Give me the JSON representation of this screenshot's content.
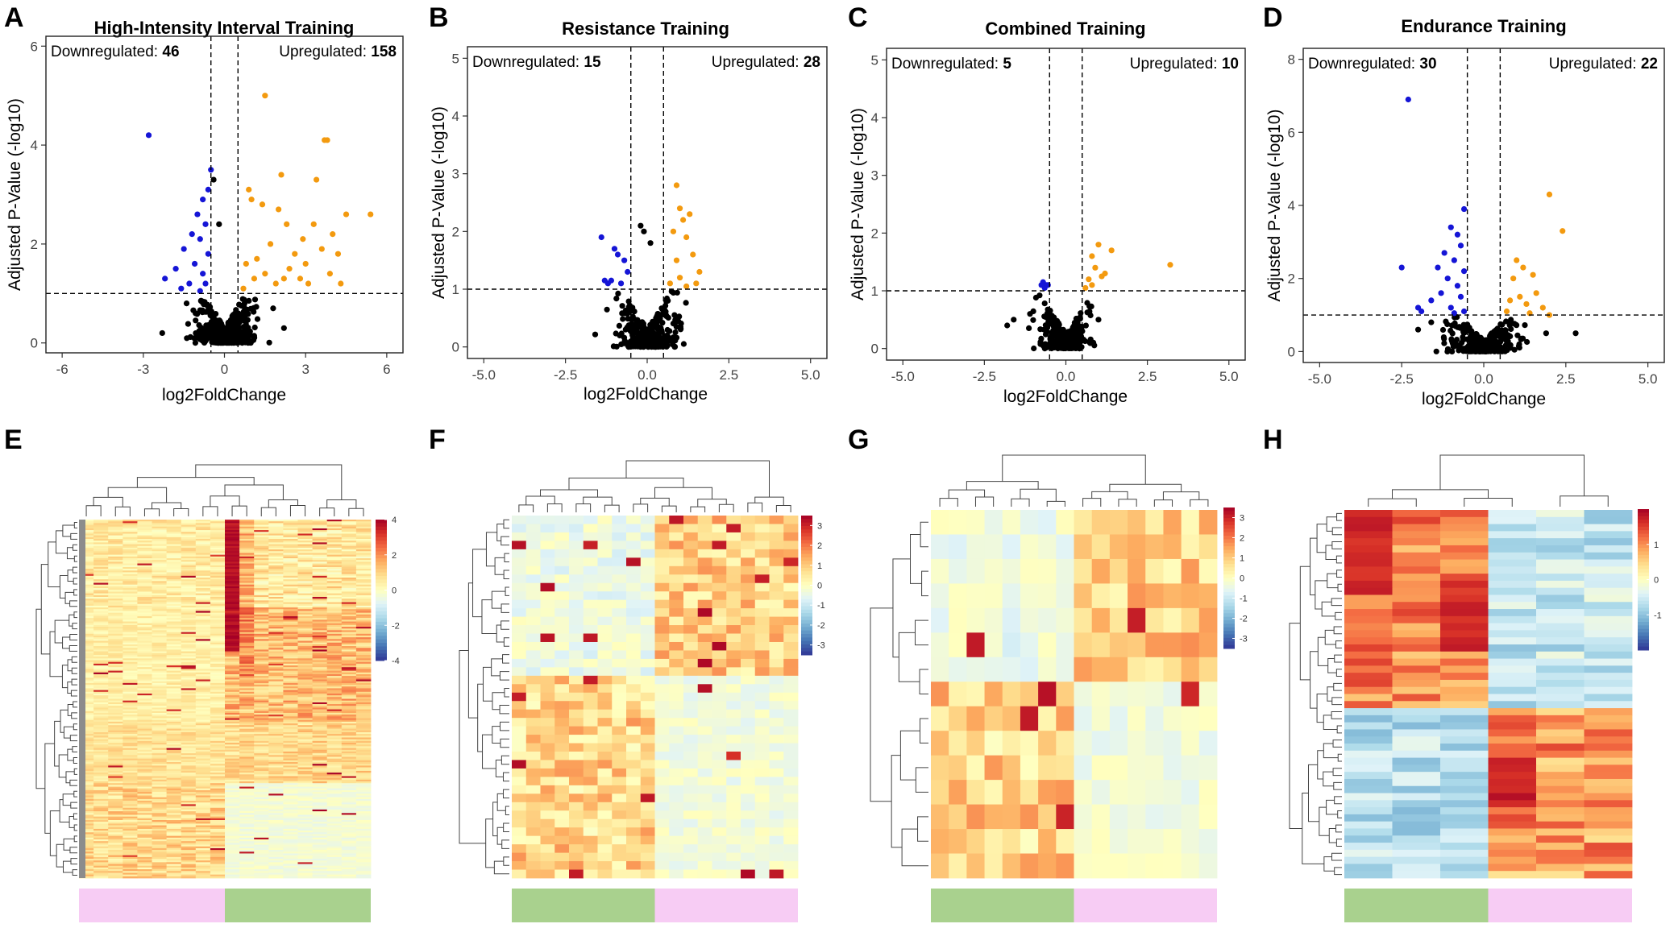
{
  "figure": {
    "panel_letters": [
      "A",
      "B",
      "C",
      "D",
      "E",
      "F",
      "G",
      "H"
    ]
  },
  "colors": {
    "down": "#1515d6",
    "up": "#f39a0f",
    "ns": "#000000",
    "group_green": "#a9d18e",
    "group_pink": "#f7ccf4",
    "colormap": [
      "#313695",
      "#4575b4",
      "#74add1",
      "#abd9e9",
      "#e0f3f8",
      "#ffffbf",
      "#fee090",
      "#fdae61",
      "#f46d43",
      "#d73027",
      "#a50026"
    ]
  },
  "chart_data": [
    {
      "type": "scatter",
      "panel": "A",
      "title": "High-Intensity Interval Training",
      "xlabel": "log2FoldChange",
      "ylabel": "Adjusted P-Value (-log10)",
      "xlim": [
        -6.6,
        6.6
      ],
      "ylim": [
        -0.2,
        6.2
      ],
      "xticks": [
        -6,
        -3,
        0,
        3,
        6
      ],
      "xtick_labels": [
        "-6",
        "-3",
        "0",
        "3",
        "6"
      ],
      "yticks": [
        0,
        2,
        4,
        6
      ],
      "ytick_labels": [
        "0",
        "2",
        "4",
        "6"
      ],
      "fc_threshold": 0.5,
      "p_threshold": 1,
      "down_label": "Downregulated:",
      "down_count": "46",
      "up_label": "Upregulated:",
      "up_count": "158",
      "downregulated": [
        [
          -2.8,
          4.2
        ],
        [
          -0.5,
          3.5
        ],
        [
          -0.6,
          3.1
        ],
        [
          -0.8,
          2.9
        ],
        [
          -1.0,
          2.6
        ],
        [
          -0.7,
          2.4
        ],
        [
          -1.2,
          2.2
        ],
        [
          -0.9,
          2.1
        ],
        [
          -1.5,
          1.9
        ],
        [
          -0.6,
          1.8
        ],
        [
          -1.1,
          1.6
        ],
        [
          -1.8,
          1.5
        ],
        [
          -0.8,
          1.4
        ],
        [
          -2.2,
          1.3
        ],
        [
          -0.7,
          1.2
        ],
        [
          -1.3,
          1.2
        ],
        [
          -1.6,
          1.1
        ],
        [
          -0.9,
          1.05
        ]
      ],
      "upregulated": [
        [
          1.5,
          5.0
        ],
        [
          3.8,
          4.1
        ],
        [
          3.7,
          4.1
        ],
        [
          3.4,
          3.3
        ],
        [
          2.1,
          3.4
        ],
        [
          0.9,
          3.1
        ],
        [
          1.0,
          2.9
        ],
        [
          1.4,
          2.8
        ],
        [
          2.0,
          2.7
        ],
        [
          4.5,
          2.6
        ],
        [
          5.4,
          2.6
        ],
        [
          3.3,
          2.4
        ],
        [
          2.3,
          2.4
        ],
        [
          4.0,
          2.2
        ],
        [
          2.9,
          2.1
        ],
        [
          1.7,
          2.0
        ],
        [
          3.6,
          1.9
        ],
        [
          4.2,
          1.8
        ],
        [
          2.6,
          1.8
        ],
        [
          1.2,
          1.7
        ],
        [
          3.0,
          1.6
        ],
        [
          2.4,
          1.5
        ],
        [
          3.9,
          1.4
        ],
        [
          1.5,
          1.4
        ],
        [
          2.2,
          1.3
        ],
        [
          4.3,
          1.2
        ],
        [
          3.1,
          1.2
        ],
        [
          1.9,
          1.2
        ],
        [
          1.1,
          1.3
        ],
        [
          0.8,
          1.6
        ],
        [
          2.8,
          1.3
        ],
        [
          0.7,
          1.1
        ]
      ],
      "ns": [
        [
          -0.4,
          3.3
        ],
        [
          -0.2,
          2.4
        ],
        [
          -1.4,
          0.8
        ],
        [
          1.8,
          0.7
        ],
        [
          -2.3,
          0.2
        ],
        [
          2.2,
          0.3
        ]
      ],
      "ns_cloud": {
        "sd_x": 0.55,
        "max_y": 1.0,
        "count": 430
      }
    },
    {
      "type": "scatter",
      "panel": "B",
      "title": "Resistance Training",
      "xlabel": "log2FoldChange",
      "ylabel": "Adjusted P-Value (-log10)",
      "xlim": [
        -5.5,
        5.5
      ],
      "ylim": [
        -0.2,
        5.2
      ],
      "xticks": [
        -5,
        -2.5,
        0,
        2.5,
        5
      ],
      "xtick_labels": [
        "-5.0",
        "-2.5",
        "0.0",
        "2.5",
        "5.0"
      ],
      "yticks": [
        0,
        1,
        2,
        3,
        4,
        5
      ],
      "ytick_labels": [
        "0",
        "1",
        "2",
        "3",
        "4",
        "5"
      ],
      "fc_threshold": 0.5,
      "p_threshold": 1,
      "down_label": "Downregulated:",
      "down_count": "15",
      "up_label": "Upregulated:",
      "up_count": "28",
      "downregulated": [
        [
          -1.4,
          1.9
        ],
        [
          -1.0,
          1.7
        ],
        [
          -0.9,
          1.6
        ],
        [
          -0.7,
          1.5
        ],
        [
          -0.6,
          1.3
        ],
        [
          -1.3,
          1.15
        ],
        [
          -1.1,
          1.15
        ],
        [
          -0.8,
          1.1
        ],
        [
          -1.2,
          1.1
        ]
      ],
      "upregulated": [
        [
          0.9,
          2.8
        ],
        [
          1.0,
          2.4
        ],
        [
          1.3,
          2.3
        ],
        [
          1.1,
          2.2
        ],
        [
          0.8,
          2.0
        ],
        [
          1.2,
          1.9
        ],
        [
          1.4,
          1.6
        ],
        [
          0.9,
          1.5
        ],
        [
          1.6,
          1.3
        ],
        [
          1.0,
          1.2
        ],
        [
          1.5,
          1.1
        ],
        [
          0.7,
          1.1
        ],
        [
          1.2,
          1.05
        ]
      ],
      "ns": [
        [
          -0.2,
          2.1
        ],
        [
          -0.1,
          2.0
        ],
        [
          0.1,
          1.8
        ]
      ],
      "ns_cloud": {
        "sd_x": 0.45,
        "max_y": 1.0,
        "count": 330
      }
    },
    {
      "type": "scatter",
      "panel": "C",
      "title": "Combined Training",
      "xlabel": "log2FoldChange",
      "ylabel": "Adjusted P-Value (-log10)",
      "xlim": [
        -5.5,
        5.5
      ],
      "ylim": [
        -0.2,
        5.2
      ],
      "xticks": [
        -5,
        -2.5,
        0,
        2.5,
        5
      ],
      "xtick_labels": [
        "-5.0",
        "-2.5",
        "0.0",
        "2.5",
        "5.0"
      ],
      "yticks": [
        0,
        1,
        2,
        3,
        4,
        5
      ],
      "ytick_labels": [
        "0",
        "1",
        "2",
        "3",
        "4",
        "5"
      ],
      "fc_threshold": 0.5,
      "p_threshold": 1,
      "down_label": "Downregulated:",
      "down_count": "5",
      "up_label": "Upregulated:",
      "up_count": "10",
      "downregulated": [
        [
          -0.7,
          1.15
        ],
        [
          -0.6,
          1.1
        ],
        [
          -0.55,
          1.1
        ],
        [
          -0.65,
          1.05
        ],
        [
          -0.75,
          1.1
        ]
      ],
      "upregulated": [
        [
          1.0,
          1.8
        ],
        [
          1.4,
          1.7
        ],
        [
          0.8,
          1.6
        ],
        [
          0.9,
          1.4
        ],
        [
          1.2,
          1.3
        ],
        [
          0.7,
          1.2
        ],
        [
          3.2,
          1.45
        ],
        [
          0.6,
          1.05
        ],
        [
          0.8,
          1.1
        ],
        [
          1.1,
          1.25
        ]
      ],
      "ns": [
        [
          -1.6,
          0.5
        ],
        [
          -1.8,
          0.4
        ],
        [
          -1.1,
          0.6
        ],
        [
          1.0,
          0.5
        ]
      ],
      "ns_cloud": {
        "sd_x": 0.4,
        "max_y": 0.9,
        "count": 260
      }
    },
    {
      "type": "scatter",
      "panel": "D",
      "title": "Endurance Training",
      "xlabel": "log2FoldChange",
      "ylabel": "Adjusted P-Value (-log10)",
      "xlim": [
        -5.5,
        5.5
      ],
      "ylim": [
        -0.3,
        8.3
      ],
      "xticks": [
        -5,
        -2.5,
        0,
        2.5,
        5
      ],
      "xtick_labels": [
        "-5.0",
        "-2.5",
        "0.0",
        "2.5",
        "5.0"
      ],
      "yticks": [
        0,
        2,
        4,
        6,
        8
      ],
      "ytick_labels": [
        "0",
        "2",
        "4",
        "6",
        "8"
      ],
      "fc_threshold": 0.5,
      "p_threshold": 1,
      "down_label": "Downregulated:",
      "down_count": "30",
      "up_label": "Upregulated:",
      "up_count": "22",
      "downregulated": [
        [
          -2.3,
          6.9
        ],
        [
          -0.6,
          3.9
        ],
        [
          -1.0,
          3.4
        ],
        [
          -0.8,
          3.2
        ],
        [
          -0.7,
          2.9
        ],
        [
          -1.2,
          2.7
        ],
        [
          -0.9,
          2.5
        ],
        [
          -1.4,
          2.3
        ],
        [
          -2.5,
          2.3
        ],
        [
          -0.6,
          2.2
        ],
        [
          -1.1,
          2.0
        ],
        [
          -0.8,
          1.8
        ],
        [
          -1.3,
          1.6
        ],
        [
          -0.7,
          1.5
        ],
        [
          -1.6,
          1.4
        ],
        [
          -2.0,
          1.2
        ],
        [
          -1.0,
          1.2
        ],
        [
          -0.6,
          1.1
        ],
        [
          -1.9,
          1.1
        ],
        [
          -0.9,
          1.05
        ]
      ],
      "upregulated": [
        [
          2.0,
          4.3
        ],
        [
          2.4,
          3.3
        ],
        [
          1.0,
          2.5
        ],
        [
          1.2,
          2.3
        ],
        [
          1.5,
          2.1
        ],
        [
          0.9,
          2.0
        ],
        [
          1.6,
          1.6
        ],
        [
          1.1,
          1.5
        ],
        [
          0.8,
          1.4
        ],
        [
          1.3,
          1.3
        ],
        [
          1.8,
          1.2
        ],
        [
          0.7,
          1.1
        ],
        [
          1.4,
          1.05
        ],
        [
          2.0,
          1.0
        ]
      ],
      "ns": [
        [
          2.8,
          0.5
        ],
        [
          -2.0,
          0.6
        ],
        [
          -1.6,
          0.8
        ],
        [
          1.9,
          0.5
        ]
      ],
      "ns_cloud": {
        "sd_x": 0.55,
        "max_y": 1.0,
        "count": 320
      }
    },
    {
      "type": "heatmap",
      "panel": "E",
      "rows": 204,
      "cols": 20,
      "color_range": [
        -4,
        4
      ],
      "colorbar_ticks": [
        4,
        2,
        0,
        -2,
        -4
      ],
      "colorbar_tick_labels": [
        "4",
        "2",
        "0",
        "-2",
        "-4"
      ],
      "groups": [
        "pink",
        "green"
      ],
      "pattern": "hiit"
    },
    {
      "type": "heatmap",
      "panel": "F",
      "rows": 43,
      "cols": 20,
      "color_range": [
        -3.5,
        3.5
      ],
      "colorbar_ticks": [
        3,
        2,
        1,
        0,
        -1,
        -2,
        -3
      ],
      "colorbar_tick_labels": [
        "3",
        "2",
        "1",
        "0",
        "-1",
        "-2",
        "-3"
      ],
      "groups": [
        "green",
        "pink"
      ],
      "pattern": "block2"
    },
    {
      "type": "heatmap",
      "panel": "G",
      "rows": 15,
      "cols": 16,
      "color_range": [
        -3.5,
        3.5
      ],
      "colorbar_ticks": [
        3,
        2,
        1,
        0,
        -1,
        -2,
        -3
      ],
      "colorbar_tick_labels": [
        "3",
        "2",
        "1",
        "0",
        "-1",
        "-2",
        "-3"
      ],
      "groups": [
        "green",
        "pink"
      ],
      "pattern": "block2"
    },
    {
      "type": "heatmap",
      "panel": "H",
      "rows": 52,
      "cols": 6,
      "color_range": [
        -2,
        2
      ],
      "colorbar_ticks": [
        1,
        0,
        -1
      ],
      "colorbar_tick_labels": [
        "1",
        "0",
        "-1"
      ],
      "groups": [
        "green",
        "pink"
      ],
      "pattern": "endurance"
    }
  ]
}
